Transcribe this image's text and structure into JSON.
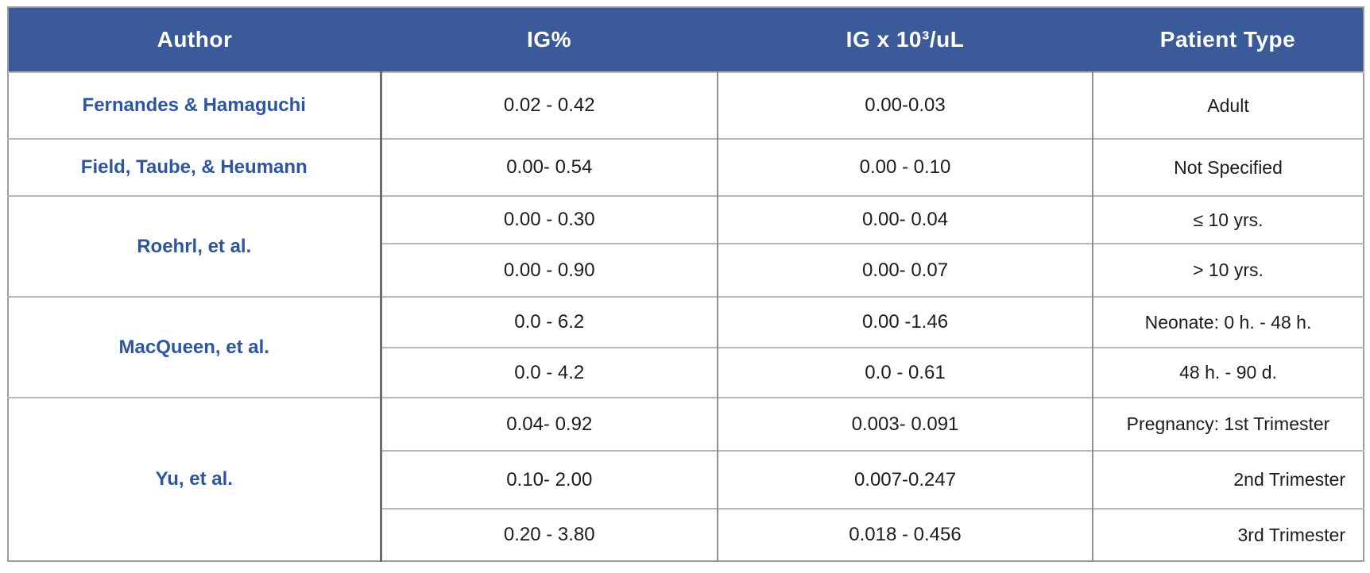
{
  "colors": {
    "header_bg": "#3a5a99",
    "header_text": "#ffffff",
    "author_text": "#2d55a0",
    "body_text": "#1c1c1c",
    "outer_border": "#9b9b9b",
    "row_line": "#b7b7b7",
    "author_divider": "#6e6e6e"
  },
  "table": {
    "headers": [
      "Author",
      "IG%",
      "IG x 10³/uL",
      "Patient Type"
    ],
    "groups": [
      {
        "author": "Fernandes & Hamaguchi",
        "rows": [
          {
            "ig_pct": "0.02 - 0.42",
            "ig_abs": "0.00-0.03",
            "patient": "Adult"
          }
        ]
      },
      {
        "author": "Field, Taube, & Heumann",
        "rows": [
          {
            "ig_pct": "0.00- 0.54",
            "ig_abs": "0.00 - 0.10",
            "patient": "Not Specified"
          }
        ]
      },
      {
        "author": "Roehrl, et al.",
        "rows": [
          {
            "ig_pct": "0.00 - 0.30",
            "ig_abs": "0.00- 0.04",
            "patient": "≤ 10 yrs."
          },
          {
            "ig_pct": "0.00 - 0.90",
            "ig_abs": "0.00- 0.07",
            "patient": "> 10 yrs."
          }
        ]
      },
      {
        "author": "MacQueen, et al.",
        "rows": [
          {
            "ig_pct": "0.0 - 6.2",
            "ig_abs": "0.00 -1.46",
            "patient": "Neonate: 0 h. - 48 h."
          },
          {
            "ig_pct": "0.0 - 4.2",
            "ig_abs": "0.0 - 0.61",
            "patient": "48 h. - 90 d."
          }
        ]
      },
      {
        "author": "Yu, et al.",
        "rows": [
          {
            "ig_pct": "0.04- 0.92",
            "ig_abs": "0.003- 0.091",
            "patient": "Pregnancy: 1st Trimester"
          },
          {
            "ig_pct": "0.10- 2.00",
            "ig_abs": "0.007-0.247",
            "patient": "2nd Trimester",
            "patient_align": "right"
          },
          {
            "ig_pct": "0.20 - 3.80",
            "ig_abs": "0.018 - 0.456",
            "patient": "3rd Trimester",
            "patient_align": "right"
          }
        ]
      }
    ]
  },
  "chart_data": {
    "type": "table",
    "title": "",
    "columns": [
      "Author",
      "IG%",
      "IG x 10³/uL",
      "Patient Type"
    ],
    "rows": [
      [
        "Fernandes & Hamaguchi",
        "0.02 - 0.42",
        "0.00-0.03",
        "Adult"
      ],
      [
        "Field, Taube, & Heumann",
        "0.00- 0.54",
        "0.00 - 0.10",
        "Not Specified"
      ],
      [
        "Roehrl, et al.",
        "0.00 - 0.30",
        "0.00- 0.04",
        "≤ 10 yrs."
      ],
      [
        "Roehrl, et al.",
        "0.00 - 0.90",
        "0.00- 0.07",
        "> 10 yrs."
      ],
      [
        "MacQueen, et al.",
        "0.0 - 6.2",
        "0.00 -1.46",
        "Neonate: 0 h. - 48 h."
      ],
      [
        "MacQueen, et al.",
        "0.0 - 4.2",
        "0.0 - 0.61",
        "48 h. - 90 d."
      ],
      [
        "Yu, et al.",
        "0.04- 0.92",
        "0.003- 0.091",
        "Pregnancy: 1st Trimester"
      ],
      [
        "Yu, et al.",
        "0.10- 2.00",
        "0.007-0.247",
        "2nd Trimester"
      ],
      [
        "Yu, et al.",
        "0.20 - 3.80",
        "0.018 - 0.456",
        "3rd Trimester"
      ]
    ]
  }
}
